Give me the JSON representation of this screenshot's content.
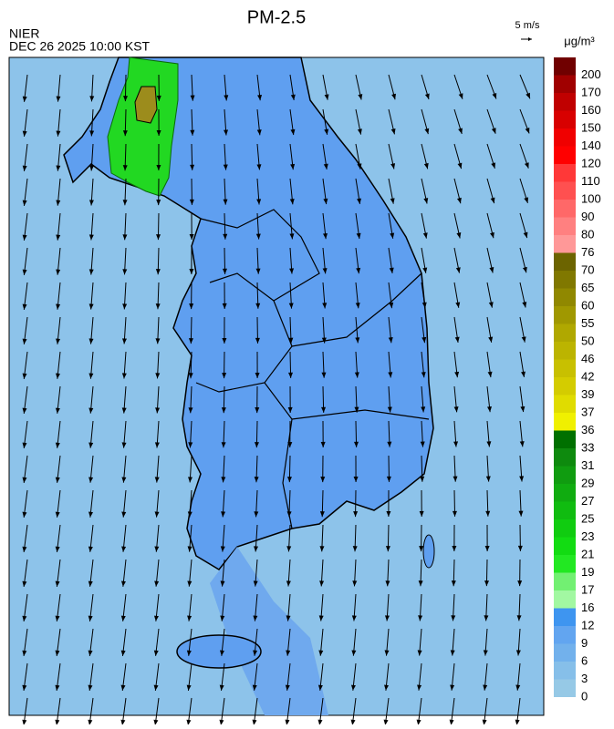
{
  "header": {
    "title": "PM-2.5",
    "agency": "NIER",
    "datetime": "DEC 26 2025 10:00 KST"
  },
  "wind_scale": {
    "label": "5 m/s"
  },
  "legend": {
    "unit": "μg/m³",
    "items": [
      {
        "label": 0,
        "color": "#96c9e6"
      },
      {
        "label": 3,
        "color": "#86bfe9"
      },
      {
        "label": 6,
        "color": "#72b1ec"
      },
      {
        "label": 9,
        "color": "#62a5f0"
      },
      {
        "label": 12,
        "color": "#3e95f0"
      },
      {
        "label": 16,
        "color": "#a2f8a2"
      },
      {
        "label": 17,
        "color": "#72f072"
      },
      {
        "label": 19,
        "color": "#22e822"
      },
      {
        "label": 21,
        "color": "#12dc12"
      },
      {
        "label": 23,
        "color": "#10cc10"
      },
      {
        "label": 25,
        "color": "#10bc10"
      },
      {
        "label": 27,
        "color": "#10ac10"
      },
      {
        "label": 29,
        "color": "#109c10"
      },
      {
        "label": 31,
        "color": "#0e8a0e"
      },
      {
        "label": 33,
        "color": "#007000"
      },
      {
        "label": 36,
        "color": "#f0f000"
      },
      {
        "label": 37,
        "color": "#e0dc00"
      },
      {
        "label": 39,
        "color": "#d4cc00"
      },
      {
        "label": 42,
        "color": "#c8c000"
      },
      {
        "label": 46,
        "color": "#bcb400"
      },
      {
        "label": 50,
        "color": "#b0a800"
      },
      {
        "label": 55,
        "color": "#a09800"
      },
      {
        "label": 60,
        "color": "#908800"
      },
      {
        "label": 65,
        "color": "#807800"
      },
      {
        "label": 70,
        "color": "#6c6400"
      },
      {
        "label": 76,
        "color": "#ff9898"
      },
      {
        "label": 80,
        "color": "#ff8080"
      },
      {
        "label": 90,
        "color": "#ff6868"
      },
      {
        "label": 100,
        "color": "#ff5050"
      },
      {
        "label": 110,
        "color": "#ff3838"
      },
      {
        "label": 120,
        "color": "#ff0000"
      },
      {
        "label": 140,
        "color": "#f00000"
      },
      {
        "label": 150,
        "color": "#d80000"
      },
      {
        "label": 160,
        "color": "#c00000"
      },
      {
        "label": 170,
        "color": "#a00000"
      },
      {
        "label": 200,
        "color": "#700000"
      }
    ]
  }
}
